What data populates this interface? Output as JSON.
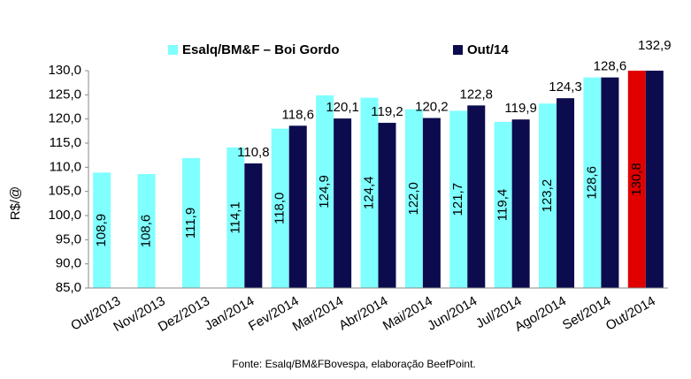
{
  "chart_data": {
    "type": "bar",
    "categories": [
      "Out/2013",
      "Nov/2013",
      "Dez/2013",
      "Jan/2014",
      "Fev/2014",
      "Mar/2014",
      "Abr/2014",
      "Mai/2014",
      "Jun/2014",
      "Jul/2014",
      "Ago/2014",
      "Set/2014",
      "Out/2014"
    ],
    "series": [
      {
        "name": "Esalq/BM&F – Boi Gordo",
        "color": "#80ffff",
        "colors": [
          "#80ffff",
          "#80ffff",
          "#80ffff",
          "#80ffff",
          "#80ffff",
          "#80ffff",
          "#80ffff",
          "#80ffff",
          "#80ffff",
          "#80ffff",
          "#80ffff",
          "#80ffff",
          "#e00000"
        ],
        "values": [
          108.9,
          108.6,
          111.9,
          114.1,
          118.0,
          124.9,
          124.4,
          122.0,
          121.7,
          119.4,
          123.2,
          128.6,
          130.8
        ],
        "value_labels": [
          "108,9",
          "108,6",
          "111,9",
          "114,1",
          "118,0",
          "124,9",
          "124,4",
          "122,0",
          "121,7",
          "119,4",
          "123,2",
          "128,6",
          "130,8"
        ]
      },
      {
        "name": "Out/14",
        "color": "#0b0b4e",
        "values": [
          null,
          null,
          null,
          110.8,
          118.6,
          120.1,
          119.2,
          120.2,
          122.8,
          119.9,
          124.3,
          128.6,
          132.9
        ],
        "value_labels": [
          null,
          null,
          null,
          "110,8",
          "118,6",
          "120,1",
          "119,2",
          "120,2",
          "122,8",
          "119,9",
          "124,3",
          "128,6",
          "132,9"
        ]
      }
    ],
    "y_label": "R$/@",
    "source": "Fonte: Esalq/BM&FBovespa, elaboração BeefPoint.",
    "ylim": [
      85,
      130
    ],
    "yticks": [
      {
        "value": 85,
        "label": "85,0"
      },
      {
        "value": 90,
        "label": "90,0"
      },
      {
        "value": 95,
        "label": "95,0"
      },
      {
        "value": 100,
        "label": "100,0"
      },
      {
        "value": 105,
        "label": "105,0"
      },
      {
        "value": 110,
        "label": "110,0"
      },
      {
        "value": 115,
        "label": "115,0"
      },
      {
        "value": 120,
        "label": "120,0"
      },
      {
        "value": 125,
        "label": "125,0"
      },
      {
        "value": 130,
        "label": "130,0"
      }
    ],
    "grid": false
  }
}
